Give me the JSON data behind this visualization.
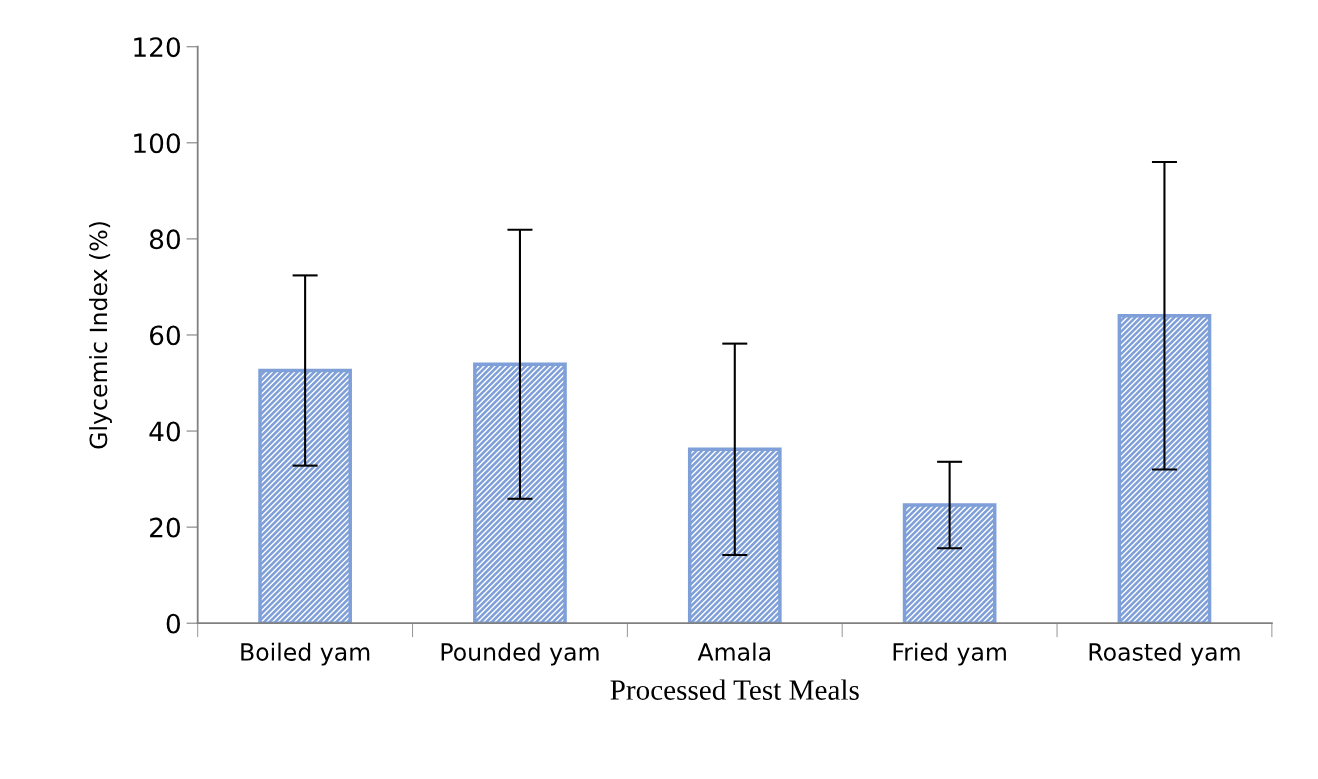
{
  "chart_data": {
    "type": "bar",
    "xlabel": "Processed Test Meals",
    "ylabel": "Glycemic Index (%)",
    "categories": [
      "Boiled yam",
      "Pounded yam",
      "Amala",
      "Fried yam",
      "Roasted yam"
    ],
    "values": [
      52.6,
      53.9,
      36.2,
      24.6,
      64.0
    ],
    "errors": [
      19.8,
      28.0,
      22.0,
      9.0,
      32.0
    ],
    "color": "#7f9fd8",
    "ylim": [
      0,
      120
    ],
    "yticks": [
      0,
      20,
      40,
      60,
      80,
      100,
      120
    ],
    "grid": false,
    "legend": false
  }
}
